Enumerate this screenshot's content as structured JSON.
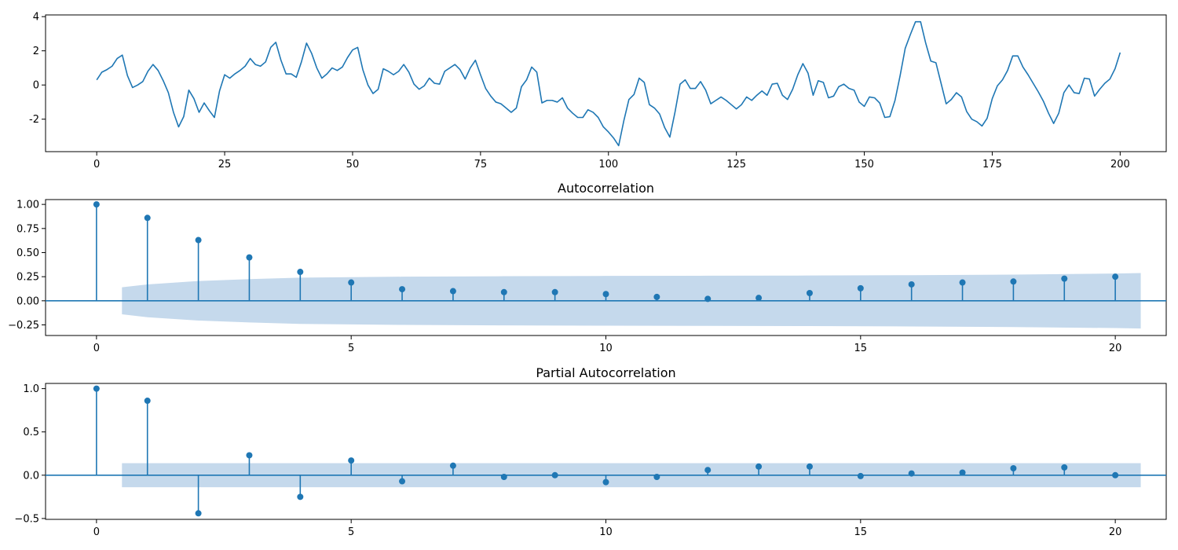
{
  "chart_data": [
    {
      "type": "line",
      "title": "",
      "xlabel": "",
      "ylabel": "",
      "xlim": [
        -10,
        209
      ],
      "ylim": [
        -3.9,
        4.1
      ],
      "xticks": [
        0,
        25,
        50,
        75,
        100,
        125,
        150,
        175,
        200
      ],
      "yticks": [
        -2,
        0,
        2,
        4
      ],
      "color": "#1f77b4",
      "y_start_x": 0,
      "y": [
        0.3,
        0.75,
        0.9,
        1.1,
        1.55,
        1.75,
        0.55,
        -0.15,
        0.0,
        0.2,
        0.8,
        1.2,
        0.85,
        0.25,
        -0.45,
        -1.6,
        -2.45,
        -1.85,
        -0.3,
        -0.8,
        -1.6,
        -1.05,
        -1.5,
        -1.9,
        -0.35,
        0.6,
        0.4,
        0.65,
        0.85,
        1.1,
        1.55,
        1.2,
        1.1,
        1.35,
        2.2,
        2.5,
        1.45,
        0.65,
        0.65,
        0.45,
        1.35,
        2.45,
        1.85,
        1.0,
        0.4,
        0.65,
        1.0,
        0.85,
        1.05,
        1.6,
        2.05,
        2.2,
        0.9,
        0.0,
        -0.5,
        -0.25,
        0.95,
        0.8,
        0.6,
        0.8,
        1.2,
        0.75,
        0.05,
        -0.25,
        -0.05,
        0.4,
        0.1,
        0.05,
        0.8,
        1.0,
        1.2,
        0.9,
        0.35,
        1.0,
        1.45,
        0.6,
        -0.2,
        -0.65,
        -1.0,
        -1.1,
        -1.35,
        -1.6,
        -1.35,
        -0.1,
        0.3,
        1.05,
        0.75,
        -1.05,
        -0.9,
        -0.9,
        -1.0,
        -0.75,
        -1.35,
        -1.65,
        -1.9,
        -1.9,
        -1.45,
        -1.6,
        -1.9,
        -2.45,
        -2.75,
        -3.1,
        -3.55,
        -2.1,
        -0.85,
        -0.55,
        0.4,
        0.15,
        -1.15,
        -1.35,
        -1.7,
        -2.5,
        -3.05,
        -1.6,
        0.05,
        0.3,
        -0.2,
        -0.2,
        0.2,
        -0.3,
        -1.1,
        -0.9,
        -0.7,
        -0.9,
        -1.15,
        -1.4,
        -1.15,
        -0.7,
        -0.9,
        -0.6,
        -0.35,
        -0.6,
        0.05,
        0.1,
        -0.6,
        -0.85,
        -0.25,
        0.6,
        1.25,
        0.7,
        -0.6,
        0.25,
        0.15,
        -0.75,
        -0.65,
        -0.1,
        0.05,
        -0.2,
        -0.3,
        -1.0,
        -1.25,
        -0.7,
        -0.75,
        -1.05,
        -1.9,
        -1.85,
        -0.9,
        0.55,
        2.15,
        2.95,
        3.7,
        3.7,
        2.45,
        1.4,
        1.3,
        0.1,
        -1.1,
        -0.85,
        -0.45,
        -0.7,
        -1.55,
        -2.0,
        -2.15,
        -2.4,
        -1.95,
        -0.8,
        -0.05,
        0.3,
        0.85,
        1.7,
        1.7,
        1.05,
        0.6,
        0.1,
        -0.4,
        -0.95,
        -1.65,
        -2.25,
        -1.65,
        -0.45,
        0.0,
        -0.45,
        -0.5,
        0.4,
        0.35,
        -0.65,
        -0.25,
        0.1,
        0.35,
        0.95,
        1.9
      ]
    },
    {
      "type": "stem",
      "title": "Autocorrelation",
      "xlim": [
        -1.0,
        21.0
      ],
      "ylim": [
        -0.36,
        1.05
      ],
      "xticks": [
        0,
        5,
        10,
        15,
        20
      ],
      "yticks": [
        -0.25,
        0.0,
        0.25,
        0.5,
        0.75,
        1.0
      ],
      "ytick_labels": [
        "−0.25",
        "0.00",
        "0.25",
        "0.50",
        "0.75",
        "1.00"
      ],
      "color": "#1f77b4",
      "confint_color": "#c5d9ec",
      "lags": [
        0,
        1,
        2,
        3,
        4,
        5,
        6,
        7,
        8,
        9,
        10,
        11,
        12,
        13,
        14,
        15,
        16,
        17,
        18,
        19,
        20
      ],
      "values": [
        1.0,
        0.86,
        0.63,
        0.45,
        0.3,
        0.19,
        0.12,
        0.1,
        0.09,
        0.09,
        0.07,
        0.04,
        0.02,
        0.03,
        0.08,
        0.13,
        0.17,
        0.19,
        0.2,
        0.23,
        0.25
      ],
      "confint_x": [
        0.5,
        1,
        2,
        3,
        4,
        5,
        6,
        8,
        10,
        12,
        14,
        16,
        18,
        20,
        20.5
      ],
      "confint_half_width": [
        0.14,
        0.17,
        0.205,
        0.225,
        0.24,
        0.245,
        0.25,
        0.255,
        0.258,
        0.26,
        0.262,
        0.266,
        0.272,
        0.283,
        0.288
      ]
    },
    {
      "type": "stem",
      "title": "Partial Autocorrelation",
      "xlim": [
        -1.0,
        21.0
      ],
      "ylim": [
        -0.51,
        1.06
      ],
      "xticks": [
        0,
        5,
        10,
        15,
        20
      ],
      "yticks": [
        -0.5,
        0.0,
        0.5,
        1.0
      ],
      "ytick_labels": [
        "−0.5",
        "0.0",
        "0.5",
        "1.0"
      ],
      "color": "#1f77b4",
      "confint_color": "#c5d9ec",
      "lags": [
        0,
        1,
        2,
        3,
        4,
        5,
        6,
        7,
        8,
        9,
        10,
        11,
        12,
        13,
        14,
        15,
        16,
        17,
        18,
        19,
        20
      ],
      "values": [
        1.0,
        0.86,
        -0.44,
        0.23,
        -0.25,
        0.17,
        -0.07,
        0.11,
        -0.02,
        0.0,
        -0.08,
        -0.02,
        0.06,
        0.1,
        0.1,
        -0.01,
        0.02,
        0.03,
        0.08,
        0.09,
        0.0
      ],
      "confint_x": [
        0.5,
        20.5
      ],
      "confint_half_width": [
        0.139,
        0.139
      ]
    }
  ]
}
